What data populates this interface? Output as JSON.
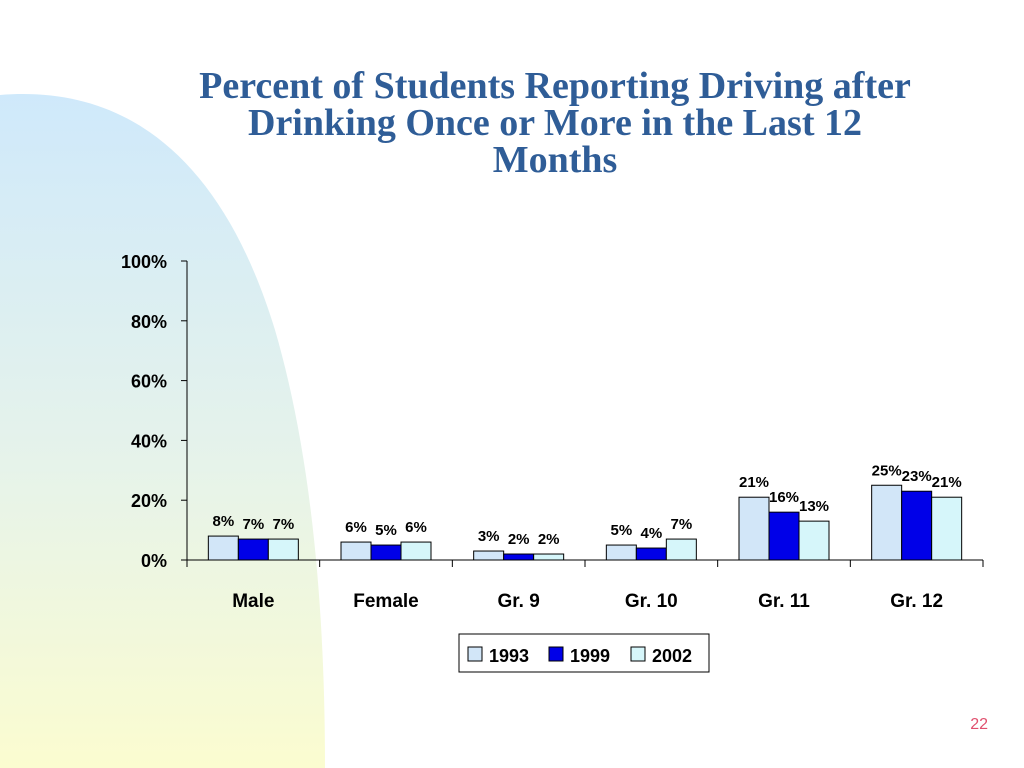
{
  "slide": {
    "title_lines": [
      "Percent of Students Reporting Driving after",
      "Drinking Once or More in the Last 12",
      "Months"
    ],
    "page_number": "22"
  },
  "colors": {
    "title": "#2f5d97",
    "page_number": "#e0506e",
    "bg_gradient_top": "#cfe9fb",
    "bg_gradient_bottom": "#fafbd0"
  },
  "chart_data": {
    "type": "bar",
    "title": "",
    "xlabel": "",
    "ylabel": "",
    "ylim": [
      0,
      100
    ],
    "yticks": [
      "0%",
      "20%",
      "40%",
      "60%",
      "80%",
      "100%"
    ],
    "categories": [
      "Male",
      "Female",
      "Gr. 9",
      "Gr. 10",
      "Gr. 11",
      "Gr. 12"
    ],
    "series": [
      {
        "name": "1993",
        "color": "#d2e6f8",
        "values": [
          8,
          6,
          3,
          5,
          21,
          25
        ],
        "labels": [
          "8%",
          "6%",
          "3%",
          "5%",
          "21%",
          "25%"
        ]
      },
      {
        "name": "1999",
        "color": "#0000e8",
        "values": [
          7,
          5,
          2,
          4,
          16,
          23
        ],
        "labels": [
          "7%",
          "5%",
          "2%",
          "4%",
          "16%",
          "23%"
        ]
      },
      {
        "name": "2002",
        "color": "#d6f6fa",
        "values": [
          7,
          6,
          2,
          7,
          13,
          21
        ],
        "labels": [
          "7%",
          "6%",
          "2%",
          "7%",
          "13%",
          "21%"
        ]
      }
    ],
    "grid": false,
    "legend": "bottom-center"
  }
}
